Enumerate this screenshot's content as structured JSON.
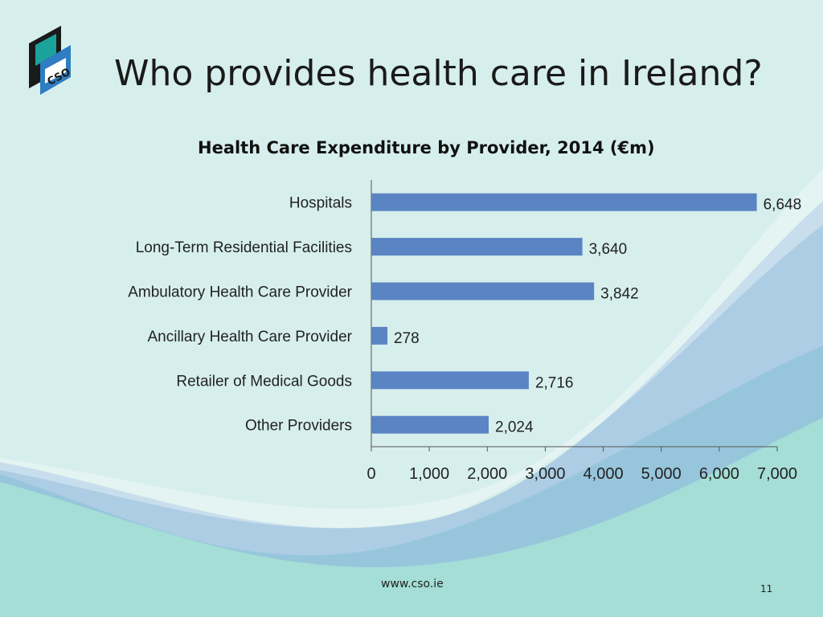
{
  "slide": {
    "title": "Who provides health care in Ireland?",
    "footer_url": "www.cso.ie",
    "page_number": "11",
    "logo_text": "CSO"
  },
  "colors": {
    "background": "#d6efec",
    "bar": "#5b84c4",
    "wave_blue": "#8fb6df",
    "wave_teal": "#7ccfc4"
  },
  "chart_data": {
    "type": "bar",
    "orientation": "horizontal",
    "title": "Health Care Expenditure by Provider, 2014 (€m)",
    "categories": [
      "Hospitals",
      "Long-Term Residential Facilities",
      "Ambulatory Health Care Provider",
      "Ancillary Health Care Provider",
      "Retailer of Medical Goods",
      "Other Providers"
    ],
    "values": [
      6648,
      3640,
      3842,
      278,
      2716,
      2024
    ],
    "data_labels": [
      "6,648",
      "3,640",
      "3,842",
      "278",
      "2,716",
      "2,024"
    ],
    "xlim": [
      0,
      7000
    ],
    "xticks": [
      0,
      1000,
      2000,
      3000,
      4000,
      5000,
      6000,
      7000
    ],
    "xtick_labels": [
      "0",
      "1,000",
      "2,000",
      "3,000",
      "4,000",
      "5,000",
      "6,000",
      "7,000"
    ],
    "grid": false,
    "legend": "none"
  }
}
